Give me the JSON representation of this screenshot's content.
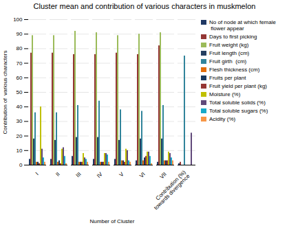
{
  "chart_data": {
    "type": "bar",
    "title": "Cluster mean and contribution of various characters in muskmelon",
    "xlabel": "Number of Cluster",
    "ylabel": "Contribution of  various characters",
    "categories": [
      "I",
      "II",
      "III",
      "IV",
      "V",
      "VI",
      "VII",
      "Contribution (%)\ntowards divergence"
    ],
    "series": [
      {
        "name": "No of node at which female\n flower appear",
        "color": "#1F3864",
        "values": [
          4,
          4,
          6,
          4,
          4,
          3,
          2,
          1
        ]
      },
      {
        "name": "Days to first picking",
        "color": "#943634",
        "values": [
          77,
          77,
          76,
          76,
          77,
          76,
          82,
          2
        ]
      },
      {
        "name": "Fruit weight (kg)",
        "color": "#9BBB59",
        "values": [
          89,
          89,
          92,
          91,
          89,
          90,
          91,
          0
        ]
      },
      {
        "name": "Fruit length (cm)",
        "color": "#243F60",
        "values": [
          18,
          17,
          19,
          19,
          17,
          18,
          18,
          0
        ]
      },
      {
        "name": "Fruit girth  (cm)",
        "color": "#31849B",
        "values": [
          36,
          36,
          41,
          44,
          38,
          37,
          41,
          75
        ]
      },
      {
        "name": "Flesh thickness (cm)",
        "color": "#E36C09",
        "values": [
          2,
          2,
          2,
          2,
          3,
          3,
          3,
          0
        ]
      },
      {
        "name": "Fruits per plant",
        "color": "#17375E",
        "values": [
          2,
          3,
          2,
          2,
          3,
          5,
          3,
          0
        ]
      },
      {
        "name": "Fruit yield per plant (kg)",
        "color": "#963634",
        "values": [
          1,
          1,
          2,
          2,
          2,
          6,
          3,
          0
        ]
      },
      {
        "name": "Moisture (%)",
        "color": "#C0C000",
        "values": [
          40,
          11,
          8,
          8,
          11,
          9,
          9,
          0
        ]
      },
      {
        "name": "Total soluble solids (%)",
        "color": "#60497A",
        "values": [
          11,
          12,
          5,
          8,
          10,
          9,
          8,
          22
        ]
      },
      {
        "name": "Total soluble sugars (%)",
        "color": "#17A9C9",
        "values": [
          5,
          6,
          4,
          7,
          3,
          6,
          5,
          0
        ]
      },
      {
        "name": "Acidity (%)",
        "color": "#F79646",
        "values": [
          2,
          1,
          2,
          2,
          2,
          1,
          3,
          0
        ]
      }
    ],
    "ylim": [
      0,
      100
    ],
    "yticks": [
      0,
      10,
      20,
      30,
      40,
      50,
      60,
      70,
      80,
      90,
      100
    ],
    "grid": true,
    "legend": "right"
  }
}
